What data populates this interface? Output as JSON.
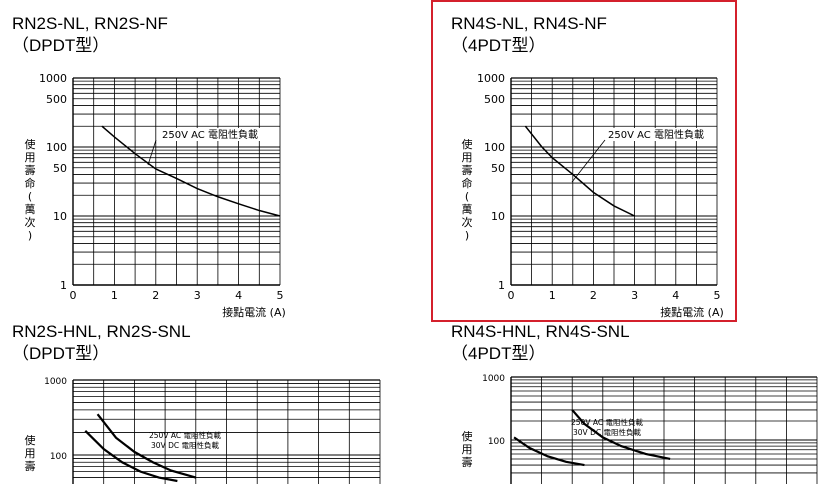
{
  "panels": [
    {
      "title_line1": "RN2S-NL, RN2S-NF",
      "title_line2": "（DPDT型）",
      "highlighted": false
    },
    {
      "title_line1": "RN4S-NL, RN4S-NF",
      "title_line2": "（4PDT型）",
      "highlighted": true,
      "highlight_color": "#d4202c"
    },
    {
      "title_line1": "RN2S-HNL, RN2S-SNL",
      "title_line2": "（DPDT型）",
      "highlighted": false
    },
    {
      "title_line1": "RN4S-HNL, RN4S-SNL",
      "title_line2": "（4PDT型）",
      "highlighted": false
    }
  ],
  "chart_data": [
    {
      "type": "line",
      "ylabel": "使用壽命(萬次)",
      "xlabel": "接點電流 (A)",
      "x_ticks": [
        "0",
        "1",
        "2",
        "3",
        "4",
        "5"
      ],
      "y_ticks": [
        "1",
        "10",
        "50",
        "100",
        "500",
        "1000"
      ],
      "xlim": [
        0,
        5
      ],
      "ylim": [
        1,
        1000
      ],
      "y_scale": "log",
      "grid": true,
      "annotation": "250V AC  電阻性負載",
      "series": [
        {
          "x": [
            0.7,
            1.0,
            1.5,
            2.0,
            2.5,
            3.0,
            3.5,
            4.0,
            4.5,
            5.0
          ],
          "y": [
            200,
            140,
            80,
            48,
            35,
            25,
            19,
            15,
            12,
            10
          ]
        }
      ]
    },
    {
      "type": "line",
      "ylabel": "使用壽命(萬次)",
      "xlabel": "接點電流 (A)",
      "x_ticks": [
        "0",
        "1",
        "2",
        "3",
        "4",
        "5"
      ],
      "y_ticks": [
        "1",
        "10",
        "50",
        "100",
        "500",
        "1000"
      ],
      "xlim": [
        0,
        5
      ],
      "ylim": [
        1,
        1000
      ],
      "y_scale": "log",
      "grid": true,
      "annotation": "250V AC  電阻性負載",
      "series": [
        {
          "x": [
            0.35,
            0.75,
            1.0,
            1.5,
            2.0,
            2.5,
            3.0
          ],
          "y": [
            200,
            100,
            70,
            40,
            22,
            14,
            10
          ]
        }
      ]
    },
    {
      "type": "line",
      "ylabel": "使用壽",
      "y_ticks": [
        "100",
        "1000"
      ],
      "y_scale": "log",
      "grid": true,
      "annotation": [
        "250V AC 電阻性負載",
        "30V DC 電阻性負載"
      ],
      "series": [
        {
          "x": [
            0.4,
            0.7,
            1.0,
            1.3,
            1.6,
            2.0
          ],
          "y": [
            350,
            170,
            110,
            80,
            62,
            50
          ]
        },
        {
          "x": [
            0.2,
            0.5,
            0.8,
            1.1,
            1.4,
            1.7
          ],
          "y": [
            210,
            120,
            80,
            60,
            50,
            45
          ]
        }
      ]
    },
    {
      "type": "line",
      "ylabel": "使用壽",
      "y_ticks": [
        "100",
        "1000"
      ],
      "y_scale": "log",
      "grid": true,
      "annotation": [
        "250V AC 電阻性負載",
        "30V DC 電阻性負載"
      ],
      "series": [
        {
          "x": [
            1.0,
            1.2,
            1.5,
            1.8,
            2.2,
            2.6
          ],
          "y": [
            300,
            180,
            110,
            80,
            60,
            50
          ]
        },
        {
          "x": [
            0.05,
            0.3,
            0.6,
            0.9,
            1.2
          ],
          "y": [
            110,
            75,
            55,
            45,
            40
          ]
        }
      ]
    }
  ]
}
